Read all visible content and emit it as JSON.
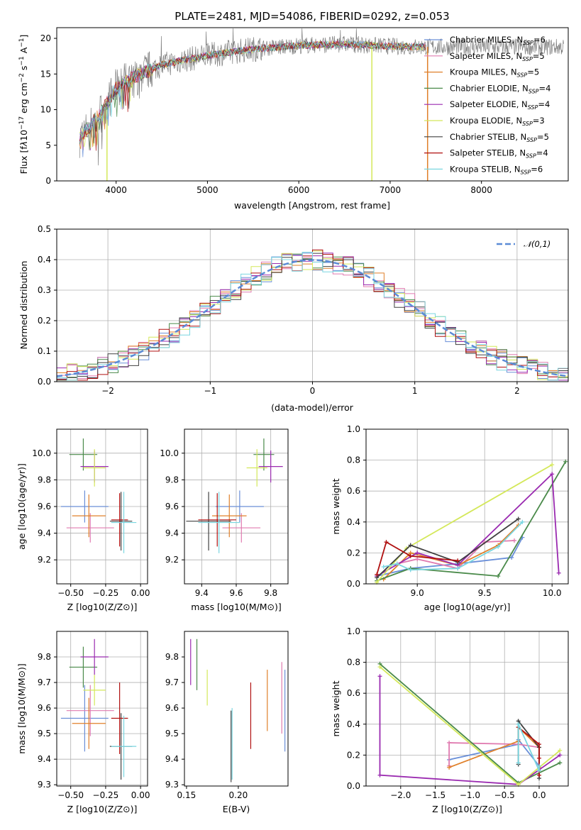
{
  "figure": {
    "title": "PLATE=2481, MJD=54086, FIBERID=0292, z=0.053"
  },
  "series": [
    {
      "name": "Chabrier MILES, N_SSP=6",
      "label": "Chabrier MILES, N",
      "sub": "SSP",
      "suffix": "=6",
      "color": "#6a8fd8"
    },
    {
      "name": "Salpeter MILES, N_SSP=5",
      "label": "Salpeter MILES, N",
      "sub": "SSP",
      "suffix": "=5",
      "color": "#e07bb0"
    },
    {
      "name": "Kroupa MILES, N_SSP=5",
      "label": "Kroupa MILES, N",
      "sub": "SSP",
      "suffix": "=5",
      "color": "#e0802a"
    },
    {
      "name": "Chabrier ELODIE, N_SSP=4",
      "label": "Chabrier ELODIE, N",
      "sub": "SSP",
      "suffix": "=4",
      "color": "#4a8a4a"
    },
    {
      "name": "Salpeter ELODIE, N_SSP=4",
      "label": "Salpeter ELODIE, N",
      "sub": "SSP",
      "suffix": "=4",
      "color": "#9a2ab0"
    },
    {
      "name": "Kroupa ELODIE, N_SSP=3",
      "label": "Kroupa ELODIE, N",
      "sub": "SSP",
      "suffix": "=3",
      "color": "#d4e85a"
    },
    {
      "name": "Chabrier STELIB, N_SSP=5",
      "label": "Chabrier STELIB, N",
      "sub": "SSP",
      "suffix": "=5",
      "color": "#404040"
    },
    {
      "name": "Salpeter STELIB, N_SSP=4",
      "label": "Salpeter STELIB, N",
      "sub": "SSP",
      "suffix": "=4",
      "color": "#b01010"
    },
    {
      "name": "Kroupa STELIB, N_SSP=6",
      "label": "Kroupa STELIB, N",
      "sub": "SSP",
      "suffix": "=6",
      "color": "#7ad6e0"
    }
  ],
  "chart_data": [
    {
      "type": "line",
      "panel": "spectrum",
      "xlabel": "wavelength [Angstrom, rest frame]",
      "ylabel": "Flux [f_λ 10^-17 erg cm^-2 s^-1 A^-1]",
      "xlim": [
        3350,
        8950
      ],
      "ylim": [
        0,
        21.5
      ],
      "xticks": [
        "4000",
        "5000",
        "6000",
        "7000",
        "8000"
      ],
      "yticks": [
        "0",
        "5",
        "10",
        "15",
        "20"
      ],
      "data_color": "#808080",
      "continuum": {
        "x": [
          3600,
          3700,
          3800,
          3900,
          4000,
          4200,
          4500,
          5000,
          5500,
          6000,
          6500,
          7000,
          7400
        ],
        "y": [
          6,
          7.5,
          9,
          11,
          13,
          14.6,
          16.3,
          17.6,
          18.5,
          19.0,
          19.2,
          18.9,
          18.8
        ]
      },
      "drops": [
        {
          "x": 3900,
          "y": 0
        },
        {
          "x": 6800,
          "y": 0
        },
        {
          "x": 7410,
          "y": 0
        }
      ]
    },
    {
      "type": "histogram",
      "panel": "residuals",
      "xlabel": "(data-model)/error",
      "ylabel": "Normed distribution",
      "xlim": [
        -2.5,
        2.5
      ],
      "ylim": [
        0,
        0.5
      ],
      "xticks": [
        "−2",
        "−1",
        "0",
        "1",
        "2"
      ],
      "yticks": [
        "0.0",
        "0.1",
        "0.2",
        "0.3",
        "0.4",
        "0.5"
      ],
      "bin_width": 0.1,
      "reference": {
        "name": "𝒩(0,1)",
        "mu": 0,
        "sigma": 1,
        "color": "#5b8bd6"
      }
    },
    {
      "type": "scatter",
      "panel": "age-vs-Z",
      "xlabel": "Z [log10(Z/Z⊙)]",
      "ylabel": "age  [log10(age/yr)]",
      "xlim": [
        -0.6,
        0.05
      ],
      "ylim": [
        9.02,
        10.18
      ],
      "xticks": [
        "−0.50",
        "−0.25",
        "0.00"
      ],
      "yticks": [
        "9.2",
        "9.4",
        "9.6",
        "9.8",
        "10.0"
      ],
      "points": [
        {
          "x": -0.4,
          "xerr": 0.17,
          "y": 9.6,
          "yerr": 0.12
        },
        {
          "x": -0.36,
          "xerr": 0.17,
          "y": 9.44,
          "yerr": 0.11
        },
        {
          "x": -0.37,
          "xerr": 0.12,
          "y": 9.53,
          "yerr": 0.16
        },
        {
          "x": -0.41,
          "xerr": 0.1,
          "y": 9.99,
          "yerr": 0.12
        },
        {
          "x": -0.33,
          "xerr": 0.1,
          "y": 9.9,
          "yerr": 0.12
        },
        {
          "x": -0.33,
          "xerr": 0.08,
          "y": 9.89,
          "yerr": 0.14
        },
        {
          "x": -0.14,
          "xerr": 0.08,
          "y": 9.49,
          "yerr": 0.22
        },
        {
          "x": -0.15,
          "xerr": 0.06,
          "y": 9.5,
          "yerr": 0.2
        },
        {
          "x": -0.12,
          "xerr": 0.09,
          "y": 9.48,
          "yerr": 0.23
        }
      ]
    },
    {
      "type": "scatter",
      "panel": "age-vs-mass",
      "xlabel": "mass [log10(M/M⊙)]",
      "ylabel": "",
      "xlim": [
        9.3,
        9.9
      ],
      "ylim": [
        9.02,
        10.18
      ],
      "xticks": [
        "9.4",
        "9.6",
        "9.8"
      ],
      "yticks": [
        "9.2",
        "9.4",
        "9.6",
        "9.8",
        "10.0"
      ],
      "points": [
        {
          "x": 9.62,
          "xerr": 0.14,
          "y": 9.6,
          "yerr": 0.12
        },
        {
          "x": 9.63,
          "xerr": 0.11,
          "y": 9.44,
          "yerr": 0.11
        },
        {
          "x": 9.56,
          "xerr": 0.1,
          "y": 9.53,
          "yerr": 0.16
        },
        {
          "x": 9.76,
          "xerr": 0.06,
          "y": 9.99,
          "yerr": 0.12
        },
        {
          "x": 9.8,
          "xerr": 0.07,
          "y": 9.9,
          "yerr": 0.12
        },
        {
          "x": 9.72,
          "xerr": 0.06,
          "y": 9.89,
          "yerr": 0.14
        },
        {
          "x": 9.44,
          "xerr": 0.13,
          "y": 9.49,
          "yerr": 0.22
        },
        {
          "x": 9.49,
          "xerr": 0.11,
          "y": 9.5,
          "yerr": 0.2
        },
        {
          "x": 9.5,
          "xerr": 0.12,
          "y": 9.48,
          "yerr": 0.23
        }
      ]
    },
    {
      "type": "line",
      "panel": "weight-vs-age",
      "xlabel": "age  [log10(age/yr)]",
      "ylabel": "mass weight",
      "xlim": [
        8.62,
        10.12
      ],
      "ylim": [
        0,
        1
      ],
      "xticks": [
        "9.0",
        "9.5",
        "10.0"
      ],
      "yticks": [
        "0.0",
        "0.2",
        "0.4",
        "0.6",
        "0.8",
        "1.0"
      ],
      "lines": [
        {
          "x": [
            8.7,
            8.95,
            9.3,
            9.7,
            9.78
          ],
          "y": [
            0.05,
            0.1,
            0.13,
            0.17,
            0.3
          ]
        },
        {
          "x": [
            8.85,
            9.0,
            9.3,
            9.5,
            9.72
          ],
          "y": [
            0.13,
            0.16,
            0.1,
            0.27,
            0.28
          ]
        },
        {
          "x": [
            8.75,
            8.95,
            9.3,
            9.6,
            9.75
          ],
          "y": [
            0.03,
            0.2,
            0.12,
            0.25,
            0.38
          ]
        },
        {
          "x": [
            8.7,
            8.95,
            9.6,
            10.1
          ],
          "y": [
            0.02,
            0.1,
            0.05,
            0.79
          ]
        },
        {
          "x": [
            8.7,
            9.0,
            9.3,
            10.0,
            10.05
          ],
          "y": [
            0.05,
            0.2,
            0.12,
            0.71,
            0.07
          ]
        },
        {
          "x": [
            8.7,
            8.92,
            10.0
          ],
          "y": [
            0.01,
            0.23,
            0.77
          ]
        },
        {
          "x": [
            8.7,
            8.95,
            9.3,
            9.75
          ],
          "y": [
            0.04,
            0.25,
            0.14,
            0.42
          ]
        },
        {
          "x": [
            8.7,
            8.77,
            8.95,
            9.3
          ],
          "y": [
            0.06,
            0.27,
            0.18,
            0.15
          ]
        },
        {
          "x": [
            8.75,
            8.85,
            8.95,
            9.3,
            9.6,
            9.78
          ],
          "y": [
            0.11,
            0.13,
            0.09,
            0.1,
            0.24,
            0.4
          ]
        }
      ]
    },
    {
      "type": "scatter",
      "panel": "mass-vs-Z",
      "xlabel": "Z [log10(Z/Z⊙)]",
      "ylabel": "mass [log10(M/M⊙)]",
      "xlim": [
        -0.6,
        0.05
      ],
      "ylim": [
        9.295,
        9.9
      ],
      "xticks": [
        "−0.50",
        "−0.25",
        "0.00"
      ],
      "yticks": [
        "9.3",
        "9.4",
        "9.5",
        "9.6",
        "9.7",
        "9.8"
      ],
      "points": [
        {
          "x": -0.4,
          "xerr": 0.17,
          "y": 9.56,
          "yerr": 0.13
        },
        {
          "x": -0.36,
          "xerr": 0.17,
          "y": 9.59,
          "yerr": 0.1
        },
        {
          "x": -0.37,
          "xerr": 0.12,
          "y": 9.54,
          "yerr": 0.1
        },
        {
          "x": -0.41,
          "xerr": 0.1,
          "y": 9.76,
          "yerr": 0.08
        },
        {
          "x": -0.33,
          "xerr": 0.1,
          "y": 9.8,
          "yerr": 0.07
        },
        {
          "x": -0.33,
          "xerr": 0.08,
          "y": 9.67,
          "yerr": 0.06
        },
        {
          "x": -0.14,
          "xerr": 0.08,
          "y": 9.45,
          "yerr": 0.13
        },
        {
          "x": -0.15,
          "xerr": 0.06,
          "y": 9.56,
          "yerr": 0.14
        },
        {
          "x": -0.12,
          "xerr": 0.09,
          "y": 9.45,
          "yerr": 0.12
        }
      ]
    },
    {
      "type": "scatter",
      "panel": "mass-vs-EBV",
      "xlabel": "E(B-V)",
      "ylabel": "",
      "xlim": [
        0.148,
        0.248
      ],
      "ylim": [
        9.295,
        9.9
      ],
      "xticks": [
        "0.15",
        "0.20"
      ],
      "yticks": [
        "9.3",
        "9.4",
        "9.5",
        "9.6",
        "9.7",
        "9.8"
      ],
      "points": [
        {
          "x": 0.245,
          "y": 9.59,
          "yerr": 0.16
        },
        {
          "x": 0.242,
          "y": 9.64,
          "yerr": 0.14
        },
        {
          "x": 0.228,
          "y": 9.63,
          "yerr": 0.12
        },
        {
          "x": 0.16,
          "y": 9.77,
          "yerr": 0.1
        },
        {
          "x": 0.154,
          "y": 9.78,
          "yerr": 0.09
        },
        {
          "x": 0.17,
          "y": 9.68,
          "yerr": 0.07
        },
        {
          "x": 0.193,
          "y": 9.45,
          "yerr": 0.14
        },
        {
          "x": 0.212,
          "y": 9.57,
          "yerr": 0.13
        },
        {
          "x": 0.194,
          "y": 9.46,
          "yerr": 0.14
        }
      ]
    },
    {
      "type": "line",
      "panel": "weight-vs-Z",
      "xlabel": "Z [log10(Z/Z⊙)]",
      "ylabel": "mass weight",
      "xlim": [
        -2.5,
        0.42
      ],
      "ylim": [
        0,
        1
      ],
      "xticks": [
        "−2.0",
        "−1.5",
        "−1.0",
        "−0.5",
        "0.0"
      ],
      "yticks": [
        "0.0",
        "0.2",
        "0.4",
        "0.6",
        "0.8",
        "1.0"
      ],
      "lines": [
        {
          "x": [
            -1.3,
            -0.3,
            -0.3,
            0.0,
            0.0
          ],
          "y": [
            0.17,
            0.27,
            0.3,
            0.13,
            0.1
          ]
        },
        {
          "x": [
            -1.3,
            -1.3,
            -0.3,
            0.0
          ],
          "y": [
            0.13,
            0.28,
            0.27,
            0.25
          ]
        },
        {
          "x": [
            -1.3,
            -0.3,
            -0.3,
            0.0,
            0.0
          ],
          "y": [
            0.12,
            0.29,
            0.38,
            0.25,
            0.12
          ]
        },
        {
          "x": [
            -2.3,
            -0.3,
            0.3
          ],
          "y": [
            0.79,
            0.02,
            0.15
          ]
        },
        {
          "x": [
            -2.3,
            -2.3,
            -0.3,
            0.3
          ],
          "y": [
            0.71,
            0.07,
            0.01,
            0.2
          ]
        },
        {
          "x": [
            -2.3,
            -0.3,
            0.3
          ],
          "y": [
            0.77,
            0.01,
            0.23
          ]
        },
        {
          "x": [
            -0.3,
            -0.3,
            0.0,
            0.0
          ],
          "y": [
            0.14,
            0.42,
            0.25,
            0.05
          ]
        },
        {
          "x": [
            -0.3,
            0.0,
            0.0,
            0.0
          ],
          "y": [
            0.38,
            0.27,
            0.18,
            0.07
          ]
        },
        {
          "x": [
            -0.3,
            -0.3,
            0.0,
            0.0
          ],
          "y": [
            0.15,
            0.4,
            0.1,
            0.13
          ]
        }
      ]
    }
  ]
}
